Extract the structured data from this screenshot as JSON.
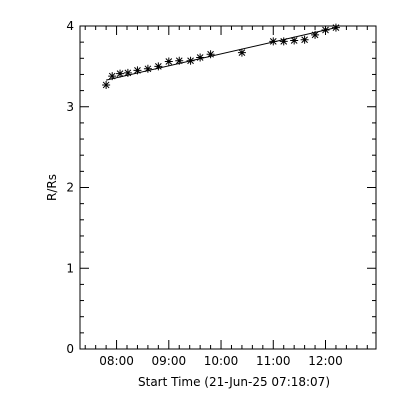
{
  "chart_data": {
    "type": "scatter",
    "title": "",
    "xlabel": "Start Time (21-Jun-25 07:18:07)",
    "ylabel": "R/Rs",
    "x_unit": "time of day",
    "xlim": [
      "07:18",
      "12:58"
    ],
    "ylim": [
      0,
      4
    ],
    "grid": false,
    "legend": "none",
    "x_tick_labels": [
      "08:00",
      "09:00",
      "10:00",
      "11:00",
      "12:00"
    ],
    "y_tick_labels": [
      "0",
      "1",
      "2",
      "3",
      "4"
    ],
    "x_ticks": [
      "08:00",
      "09:00",
      "10:00",
      "11:00",
      "12:00"
    ],
    "y_ticks": [
      0,
      1,
      2,
      3,
      4
    ],
    "marker": "asterisk",
    "points": [
      {
        "x": "07:48",
        "y": 3.27
      },
      {
        "x": "07:55",
        "y": 3.38
      },
      {
        "x": "08:04",
        "y": 3.41
      },
      {
        "x": "08:13",
        "y": 3.42
      },
      {
        "x": "08:24",
        "y": 3.45
      },
      {
        "x": "08:36",
        "y": 3.47
      },
      {
        "x": "08:48",
        "y": 3.5
      },
      {
        "x": "09:00",
        "y": 3.56
      },
      {
        "x": "09:12",
        "y": 3.57
      },
      {
        "x": "09:25",
        "y": 3.57
      },
      {
        "x": "09:36",
        "y": 3.61
      },
      {
        "x": "09:48",
        "y": 3.65
      },
      {
        "x": "10:24",
        "y": 3.67
      },
      {
        "x": "11:00",
        "y": 3.81
      },
      {
        "x": "11:12",
        "y": 3.81
      },
      {
        "x": "11:24",
        "y": 3.82
      },
      {
        "x": "11:36",
        "y": 3.83
      },
      {
        "x": "11:48",
        "y": 3.89
      },
      {
        "x": "12:00",
        "y": 3.95
      },
      {
        "x": "12:12",
        "y": 3.98
      }
    ],
    "fit_line": [
      {
        "x": "07:48",
        "y": 3.33
      },
      {
        "x": "12:12",
        "y": 3.98
      }
    ]
  }
}
